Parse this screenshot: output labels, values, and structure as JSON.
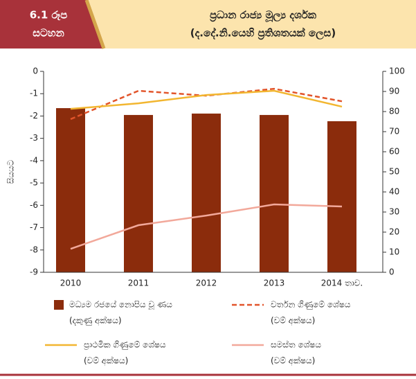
{
  "header": {
    "figure_label_1": "6.1 රූප",
    "figure_label_2": "සටහන"
  },
  "chart_data": {
    "type": "bar_line",
    "title": "ප්‍රධාන රාජ්‍ය මූල්‍ය දර්ශක",
    "subtitle": "(ද.දේ.නි.යෙහි ප්‍රතිශතයක් ලෙස)",
    "ylabel": "සියයට",
    "categories": [
      "2010",
      "2011",
      "2012",
      "2013",
      "2014 තාව."
    ],
    "ylim": [
      -9,
      0
    ],
    "yticks": [
      0,
      -1,
      -2,
      -3,
      -4,
      -5,
      -6,
      -7,
      -8,
      -9
    ],
    "y2lim": [
      0,
      100
    ],
    "y2ticks": [
      100,
      90,
      80,
      70,
      60,
      50,
      40,
      30,
      20,
      10,
      0
    ],
    "series": [
      {
        "name": "මධ්‍යම රජයේ නොපිය වූ ණය",
        "legend_note": "(දකුණු අක්ෂය)",
        "type": "bar",
        "axis": "y2",
        "color": "#8b2c0c",
        "values": [
          81.7,
          78.3,
          79.0,
          78.3,
          75.2
        ]
      },
      {
        "name": "වර්තන ගිණුමේ ශේෂය",
        "legend_note": "(වම් අක්ෂය)",
        "type": "line",
        "dashed": true,
        "color": "#e2542a",
        "values": [
          -2.14,
          -0.87,
          -1.09,
          -0.78,
          -1.34
        ]
      },
      {
        "name": "ප්‍රාථමික ගිණුමේ ශේෂය",
        "legend_note": "(වම් අක්ෂය)",
        "type": "line",
        "dashed": false,
        "color": "#f2b630",
        "values": [
          -1.68,
          -1.43,
          -1.06,
          -0.87,
          -1.58
        ]
      },
      {
        "name": "සමස්ත ශේෂය",
        "legend_note": "(වම් අක්ෂය)",
        "type": "line",
        "dashed": false,
        "color": "#f2a89a",
        "values": [
          -7.95,
          -6.89,
          -6.46,
          -5.96,
          -6.05
        ]
      }
    ]
  }
}
